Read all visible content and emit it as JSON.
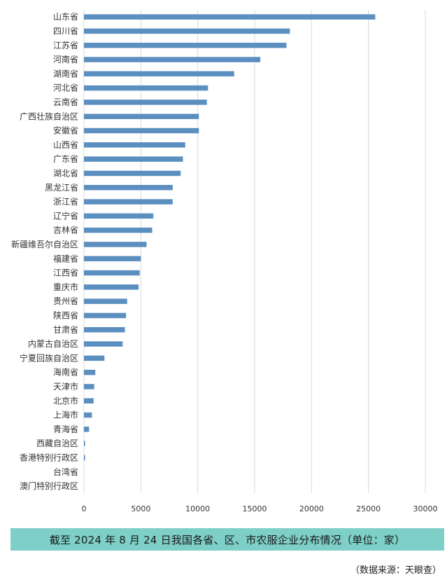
{
  "chart_data": {
    "type": "bar",
    "orientation": "horizontal",
    "categories": [
      "山东省",
      "四川省",
      "江苏省",
      "河南省",
      "湖南省",
      "河北省",
      "云南省",
      "广西壮族自治区",
      "安徽省",
      "山西省",
      "广东省",
      "湖北省",
      "黑龙江省",
      "浙江省",
      "辽宁省",
      "吉林省",
      "新疆维吾尔自治区",
      "福建省",
      "江西省",
      "重庆市",
      "贵州省",
      "陕西省",
      "甘肃省",
      "内蒙古自治区",
      "宁夏回族自治区",
      "海南省",
      "天津市",
      "北京市",
      "上海市",
      "青海省",
      "西藏自治区",
      "香港特别行政区",
      "台湾省",
      "澳门特别行政区"
    ],
    "values": [
      25600,
      18100,
      17800,
      15500,
      13200,
      10900,
      10800,
      10100,
      10100,
      8900,
      8700,
      8500,
      7800,
      7800,
      6100,
      6000,
      5500,
      5000,
      4900,
      4800,
      3800,
      3700,
      3600,
      3400,
      1800,
      1000,
      900,
      850,
      700,
      450,
      100,
      100,
      0,
      0
    ],
    "xlim": [
      0,
      30000
    ],
    "xticks": [
      "0",
      "5000",
      "10000",
      "15000",
      "20000",
      "25000",
      "30000"
    ],
    "grid": true,
    "bar_color": "#5b8fc0",
    "grid_color": "#d9d9d9"
  },
  "caption": "截至 2024 年 8 月 24 日我国各省、区、市农服企业分布情况（单位：家）",
  "caption_bg": "#7ecfc7",
  "source": "（数据来源：天眼查）"
}
